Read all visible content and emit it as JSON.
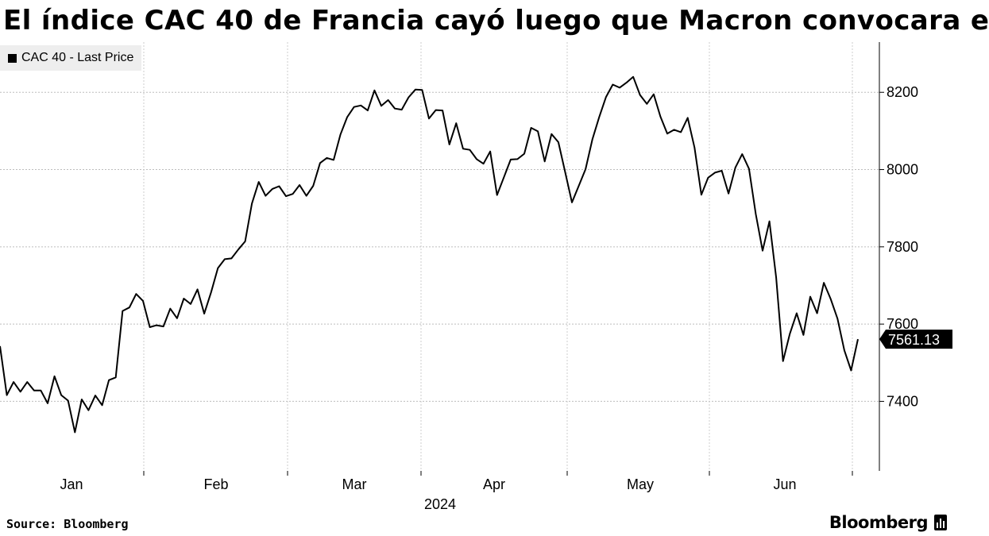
{
  "title": "El índice CAC 40 de Francia cayó luego que Macron convocara e",
  "source": "Source: Bloomberg",
  "brand": "Bloomberg",
  "chart_data": {
    "type": "line",
    "title": "El índice CAC 40 de Francia cayó luego que Macron convocara e",
    "xlabel": "2024",
    "ylabel": "",
    "ylim": [
      7220,
      8330
    ],
    "y_ticks": [
      7400,
      7600,
      7800,
      8000,
      8200
    ],
    "y_tick_labels": [
      "7400",
      "7600",
      "7800",
      "8000",
      "8200"
    ],
    "x_month_labels": [
      "Jan",
      "Feb",
      "Mar",
      "Apr",
      "May",
      "Jun"
    ],
    "x_year_label": "2024",
    "legend_position": "top-left",
    "grid": true,
    "last_value_label": "7561.13",
    "line_color": "#000000",
    "series": [
      {
        "name": "CAC 40 - Last Price",
        "values": [
          7543,
          7416,
          7450,
          7425,
          7450,
          7428,
          7428,
          7395,
          7465,
          7416,
          7402,
          7320,
          7405,
          7377,
          7415,
          7390,
          7455,
          7462,
          7634,
          7643,
          7678,
          7660,
          7592,
          7597,
          7594,
          7640,
          7615,
          7666,
          7652,
          7690,
          7627,
          7682,
          7745,
          7768,
          7770,
          7793,
          7814,
          7912,
          7968,
          7932,
          7950,
          7957,
          7931,
          7937,
          7960,
          7932,
          7958,
          8017,
          8030,
          8025,
          8091,
          8136,
          8162,
          8166,
          8153,
          8205,
          8165,
          8180,
          8158,
          8155,
          8187,
          8207,
          8206,
          8132,
          8154,
          8153,
          8065,
          8120,
          8054,
          8051,
          8027,
          8015,
          8047,
          7934,
          7980,
          8026,
          8027,
          8041,
          8108,
          8099,
          8021,
          8092,
          8071,
          7994,
          7915,
          7958,
          8001,
          8078,
          8136,
          8188,
          8220,
          8212,
          8225,
          8240,
          8193,
          8170,
          8195,
          8137,
          8093,
          8103,
          8097,
          8134,
          8057,
          7935,
          7979,
          7992,
          7997,
          7938,
          8005,
          8040,
          8002,
          7885,
          7790,
          7866,
          7720,
          7504,
          7575,
          7628,
          7572,
          7671,
          7628,
          7707,
          7665,
          7614,
          7532,
          7480,
          7561
        ]
      }
    ]
  }
}
